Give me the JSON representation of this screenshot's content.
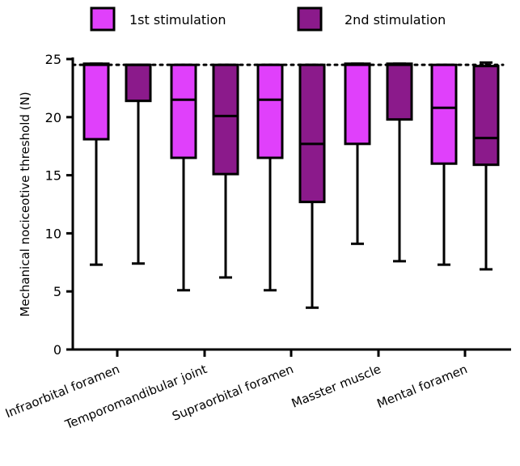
{
  "chart_data": {
    "type": "box",
    "ylabel": "Mechanical nociceotive threshold (N)",
    "ylim": [
      0,
      25
    ],
    "yticks": [
      0,
      5,
      10,
      15,
      20,
      25
    ],
    "reference_line": 24.5,
    "categories": [
      "Infraorbital foramen",
      "Temporomandibular joint",
      "Supraorbital foramen",
      "Masster muscle",
      "Mental foramen"
    ],
    "series": [
      {
        "name": "1st stimulation",
        "color": "#e040fb",
        "boxes": [
          {
            "min": 7.3,
            "q1": 18.1,
            "median": 24.5,
            "q3": 24.6,
            "max": 24.6
          },
          {
            "min": 5.1,
            "q1": 16.5,
            "median": 21.5,
            "q3": 24.5,
            "max": 24.5
          },
          {
            "min": 5.1,
            "q1": 16.5,
            "median": 21.5,
            "q3": 24.5,
            "max": 24.5
          },
          {
            "min": 9.1,
            "q1": 17.7,
            "median": 24.5,
            "q3": 24.6,
            "max": 24.6
          },
          {
            "min": 7.3,
            "q1": 16.0,
            "median": 20.8,
            "q3": 24.5,
            "max": 24.5
          }
        ]
      },
      {
        "name": "2nd stimulation",
        "color": "#8b1a8b",
        "boxes": [
          {
            "min": 7.4,
            "q1": 21.4,
            "median": 24.5,
            "q3": 24.5,
            "max": 24.5
          },
          {
            "min": 6.2,
            "q1": 15.1,
            "median": 20.1,
            "q3": 24.5,
            "max": 24.5
          },
          {
            "min": 3.6,
            "q1": 12.7,
            "median": 17.7,
            "q3": 24.5,
            "max": 24.5
          },
          {
            "min": 7.6,
            "q1": 19.8,
            "median": 24.5,
            "q3": 24.6,
            "max": 24.6
          },
          {
            "min": 6.9,
            "q1": 15.9,
            "median": 18.2,
            "q3": 24.4,
            "max": 24.7
          }
        ]
      }
    ],
    "legend_position": "top"
  }
}
